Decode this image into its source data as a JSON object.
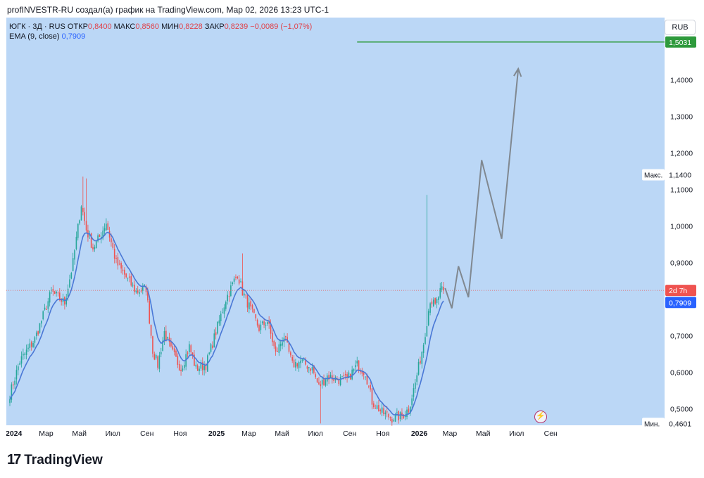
{
  "header": {
    "caption": "profINVESTR-RU создал(а) график на TradingView.com, Мар 02, 2026 13:23 UTC-1"
  },
  "legend": {
    "symbol": "ЮГК · 3Д · RUS",
    "open_label": "ОТКР",
    "open_value": "0,8400",
    "high_label": "МАКС",
    "high_value": "0,8560",
    "low_label": "МИН",
    "low_value": "0,8228",
    "close_label": "ЗАКР",
    "close_value": "0,8239",
    "change": "−0,0089 (−1,07%)",
    "ema_label": "EMA (9, close)",
    "ema_value": "0,7909"
  },
  "currency": "RUB",
  "brand": {
    "name": "TradingView",
    "mark": "17"
  },
  "colors": {
    "background": "#bbd7f6",
    "up": "#26a69a",
    "down": "#ef5350",
    "ema": "#4a78d6",
    "target": "#2e9a3c",
    "projection": "#808890"
  },
  "chart_data": {
    "type": "candlestick",
    "symbol": "ЮГК",
    "timeframe": "3Д",
    "currency": "RUB",
    "ylim": [
      0.455,
      1.57
    ],
    "y_ticks": [
      {
        "value": 0.5,
        "label": "0,5000"
      },
      {
        "value": 0.6,
        "label": "0,6000"
      },
      {
        "value": 0.7,
        "label": "0,7000"
      },
      {
        "value": 0.8,
        "label": "0,8000"
      },
      {
        "value": 0.9,
        "label": "0,9000"
      },
      {
        "value": 1.0,
        "label": "1,0000"
      },
      {
        "value": 1.1,
        "label": "1,1000"
      },
      {
        "value": 1.2,
        "label": "1,2000"
      },
      {
        "value": 1.3,
        "label": "1,3000"
      },
      {
        "value": 1.4,
        "label": "1,4000"
      }
    ],
    "x_ticks": [
      {
        "index": 0,
        "label": "2024"
      },
      {
        "index": 20,
        "label": "Мар"
      },
      {
        "index": 40,
        "label": "Май"
      },
      {
        "index": 60,
        "label": "Июл"
      },
      {
        "index": 81,
        "label": "Сен"
      },
      {
        "index": 101,
        "label": "Ноя"
      },
      {
        "index": 122,
        "label": "2025"
      },
      {
        "index": 142,
        "label": "Мар"
      },
      {
        "index": 162,
        "label": "Май"
      },
      {
        "index": 182,
        "label": "Июл"
      },
      {
        "index": 203,
        "label": "Сен"
      },
      {
        "index": 223,
        "label": "Ноя"
      },
      {
        "index": 244,
        "label": "2026"
      },
      {
        "index": 263,
        "label": "Мар"
      },
      {
        "index": 283,
        "label": "Май"
      },
      {
        "index": 303,
        "label": "Июл"
      },
      {
        "index": 324,
        "label": "Сен"
      }
    ],
    "anchors": [
      [
        0,
        0.54
      ],
      [
        6,
        0.63
      ],
      [
        15,
        0.69
      ],
      [
        25,
        0.82
      ],
      [
        33,
        0.79
      ],
      [
        38,
        0.9
      ],
      [
        43,
        1.06
      ],
      [
        46,
        0.99
      ],
      [
        50,
        0.94
      ],
      [
        54,
        0.97
      ],
      [
        58,
        1.01
      ],
      [
        64,
        0.9
      ],
      [
        70,
        0.86
      ],
      [
        76,
        0.82
      ],
      [
        82,
        0.83
      ],
      [
        86,
        0.66
      ],
      [
        89,
        0.62
      ],
      [
        93,
        0.71
      ],
      [
        97,
        0.66
      ],
      [
        103,
        0.61
      ],
      [
        108,
        0.67
      ],
      [
        112,
        0.61
      ],
      [
        118,
        0.62
      ],
      [
        124,
        0.71
      ],
      [
        130,
        0.8
      ],
      [
        137,
        0.87
      ],
      [
        140,
        0.82
      ],
      [
        146,
        0.76
      ],
      [
        150,
        0.72
      ],
      [
        155,
        0.74
      ],
      [
        160,
        0.65
      ],
      [
        165,
        0.7
      ],
      [
        170,
        0.62
      ],
      [
        175,
        0.63
      ],
      [
        182,
        0.61
      ],
      [
        186,
        0.56
      ],
      [
        191,
        0.59
      ],
      [
        197,
        0.58
      ],
      [
        203,
        0.58
      ],
      [
        209,
        0.62
      ],
      [
        214,
        0.6
      ],
      [
        218,
        0.52
      ],
      [
        224,
        0.49
      ],
      [
        230,
        0.475
      ],
      [
        236,
        0.48
      ],
      [
        240,
        0.5
      ],
      [
        244,
        0.57
      ],
      [
        249,
        0.68
      ],
      [
        253,
        0.8
      ],
      [
        256,
        0.78
      ],
      [
        259,
        0.82
      ],
      [
        261,
        0.8239
      ]
    ],
    "spikes": [
      {
        "index": 44,
        "high": 1.135
      },
      {
        "index": 46,
        "high": 1.13
      },
      {
        "index": 140,
        "high": 0.925
      },
      {
        "index": 187,
        "high": 0.46
      },
      {
        "index": 251,
        "high": 1.085
      }
    ],
    "ema": {
      "label": "EMA (9, close)",
      "period": 9,
      "last": 0.7909
    },
    "last_price": {
      "value": 0.8239,
      "label": "2d 7h"
    },
    "ema_price": {
      "value": 0.7909,
      "label": "0,7909"
    },
    "target_line": {
      "value": 1.5031,
      "label": "1,5031",
      "from_index": 209
    },
    "max_marker": {
      "value": 1.14,
      "name": "Макс.",
      "label": "1,1400"
    },
    "min_marker": {
      "value": 0.4601,
      "name": "Мин.",
      "label": "0,4601"
    },
    "projection": [
      [
        262,
        0.83
      ],
      [
        266,
        0.775
      ],
      [
        270,
        0.89
      ],
      [
        276,
        0.805
      ],
      [
        284,
        1.18
      ],
      [
        296,
        0.965
      ],
      [
        306,
        1.43
      ]
    ]
  }
}
